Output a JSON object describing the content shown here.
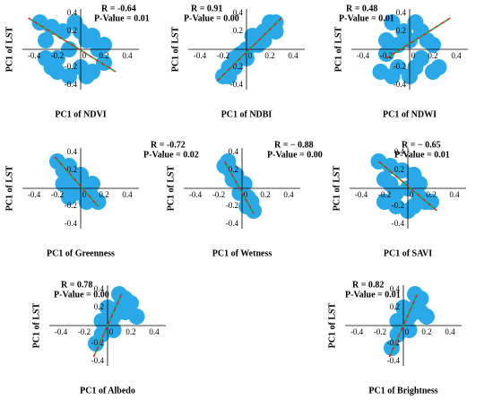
{
  "chart_data": [
    {
      "type": "scatter",
      "annotations": [
        "R = -0.64",
        "P-Value = 0.01"
      ],
      "xlabel": "PC1 of NDVI",
      "ylabel": "PC1 of LST",
      "color": "#29a9e8",
      "x": [
        -0.35,
        -0.3,
        -0.25,
        -0.2,
        -0.15,
        -0.1,
        -0.05,
        0,
        0.05,
        0.1,
        0.15,
        0.2,
        -0.3,
        -0.2,
        -0.1,
        0,
        0.1,
        0.2,
        -0.25,
        0.05
      ],
      "y": [
        0.3,
        0.1,
        0.25,
        -0.1,
        0.2,
        0,
        0.3,
        -0.2,
        0.1,
        -0.25,
        0,
        -0.15,
        -0.1,
        -0.25,
        -0.3,
        0.2,
        0.15,
        0.05,
        -0.2,
        -0.3
      ],
      "trend_line": {
        "x": [
          -0.45,
          0.3
        ],
        "y": [
          0.35,
          -0.25
        ],
        "colors": [
          "#d62728",
          "#2ca02c"
        ]
      },
      "xlim": [
        -0.5,
        0.5
      ],
      "ylim": [
        -0.45,
        0.45
      ],
      "xticks": [
        -0.4,
        -0.2,
        0,
        0.2,
        0.4
      ],
      "yticks": [
        -0.4,
        -0.2,
        0,
        0.2,
        0.4
      ]
    },
    {
      "type": "scatter",
      "annotations": [
        "R = 0.91",
        "P-Value = 0.00"
      ],
      "xlabel": "PC1 of NDBI",
      "ylabel": "PC1 of LST",
      "color": "#29a9e8",
      "x": [
        -0.2,
        -0.15,
        -0.1,
        -0.05,
        0,
        0.05,
        0.1,
        0.15,
        0.2,
        0.25,
        -0.1,
        0,
        0.1,
        0.2,
        -0.15,
        0.05,
        0.15,
        0.25
      ],
      "y": [
        -0.3,
        -0.2,
        -0.2,
        -0.05,
        0,
        0.05,
        0.15,
        0.2,
        0.25,
        0.3,
        -0.1,
        -0.1,
        0.05,
        0.3,
        -0.3,
        0.15,
        0.1,
        0.2
      ],
      "trend_line": {
        "x": [
          -0.25,
          0.3
        ],
        "y": [
          -0.35,
          0.35
        ],
        "colors": [
          "#d62728",
          "#2ca02c"
        ]
      },
      "xlim": [
        -0.5,
        0.5
      ],
      "ylim": [
        -0.45,
        0.45
      ],
      "xticks": [
        -0.4,
        -0.2,
        0,
        0.2,
        0.4
      ],
      "yticks": [
        -0.4,
        -0.2,
        0,
        0.2,
        0.4
      ]
    },
    {
      "type": "scatter",
      "annotations": [
        "R = 0.48",
        "P-Value = 0.01"
      ],
      "xlabel": "PC1 of NDWI",
      "ylabel": "PC1 of LST",
      "color": "#29a9e8",
      "x": [
        -0.25,
        -0.2,
        -0.15,
        -0.1,
        -0.05,
        0,
        0.05,
        0.1,
        0.15,
        0.2,
        -0.2,
        -0.1,
        0,
        0.1,
        0.2,
        0.25,
        -0.15,
        0.05
      ],
      "y": [
        -0.25,
        0.1,
        0.3,
        -0.2,
        0.2,
        -0.3,
        0.3,
        -0.1,
        0.1,
        -0.25,
        -0.05,
        0.05,
        0.1,
        0.2,
        0.05,
        -0.2,
        -0.3,
        -0.2
      ],
      "trend_line": {
        "x": [
          -0.2,
          0.35
        ],
        "y": [
          -0.1,
          0.35
        ],
        "colors": [
          "#d62728",
          "#2ca02c"
        ]
      },
      "xlim": [
        -0.5,
        0.5
      ],
      "ylim": [
        -0.45,
        0.45
      ],
      "xticks": [
        -0.4,
        -0.2,
        0,
        0.2,
        0.4
      ],
      "yticks": [
        -0.4,
        -0.2,
        0,
        0.2,
        0.4
      ]
    },
    {
      "type": "scatter",
      "annotations": [
        "R = -0.72",
        "P-Value = 0.02"
      ],
      "xlabel": "PC1 of Greenness",
      "ylabel": "PC1 of LST",
      "color": "#29a9e8",
      "x": [
        -0.2,
        -0.15,
        -0.1,
        -0.05,
        0,
        0.05,
        0.1,
        -0.15,
        -0.05,
        0.05,
        0.1,
        0,
        -0.1,
        0.15
      ],
      "y": [
        0.3,
        0.2,
        0.25,
        0.1,
        0.05,
        0,
        -0.1,
        0.05,
        -0.05,
        -0.15,
        0.05,
        0.15,
        -0.1,
        -0.15
      ],
      "trend_line": {
        "x": [
          -0.22,
          0.15
        ],
        "y": [
          0.35,
          -0.2
        ],
        "colors": [
          "#d62728",
          "#2ca02c"
        ]
      },
      "xlim": [
        -0.5,
        0.5
      ],
      "ylim": [
        -0.45,
        0.45
      ],
      "xticks": [
        -0.4,
        -0.2,
        0,
        0.2,
        0.4
      ],
      "yticks": [
        -0.4,
        -0.2,
        0,
        0.2,
        0.4
      ]
    },
    {
      "type": "scatter",
      "annotations": [
        "R = − 0.88",
        "P-Value = 0.00"
      ],
      "xlabel": "PC1 of Wetness",
      "ylabel": "PC1 of LST",
      "color": "#29a9e8",
      "x": [
        -0.15,
        -0.1,
        -0.08,
        -0.05,
        0,
        0.02,
        0.05,
        0.08,
        0.1,
        -0.12,
        -0.02,
        0.04
      ],
      "y": [
        0.25,
        0.2,
        0.1,
        0.15,
        0,
        0.05,
        -0.1,
        -0.15,
        -0.25,
        0.3,
        -0.05,
        -0.2
      ],
      "trend_line": {
        "x": [
          -0.15,
          0.1
        ],
        "y": [
          0.3,
          -0.28
        ],
        "colors": [
          "#d62728",
          "#2ca02c"
        ]
      },
      "xlim": [
        -0.5,
        0.5
      ],
      "ylim": [
        -0.45,
        0.45
      ],
      "xticks": [
        -0.4,
        -0.2,
        0,
        0.2,
        0.4
      ],
      "yticks": [
        -0.4,
        -0.2,
        0,
        0.2,
        0.4
      ]
    },
    {
      "type": "scatter",
      "annotations": [
        "R = − 0.65",
        "P-Value = 0.01"
      ],
      "xlabel": "PC1 of SAVI",
      "ylabel": "PC1 of LST",
      "color": "#29a9e8",
      "x": [
        -0.25,
        -0.2,
        -0.15,
        -0.1,
        -0.05,
        0,
        0.05,
        0.1,
        0.15,
        -0.2,
        -0.1,
        0,
        0.1,
        -0.15,
        0.05,
        0.2
      ],
      "y": [
        0.3,
        0.1,
        0.25,
        -0.05,
        0.2,
        0,
        0.15,
        -0.1,
        -0.15,
        -0.15,
        -0.2,
        -0.25,
        0.05,
        0.05,
        -0.2,
        -0.15
      ],
      "trend_line": {
        "x": [
          -0.25,
          0.25
        ],
        "y": [
          0.3,
          -0.25
        ],
        "colors": [
          "#d62728",
          "#2ca02c"
        ]
      },
      "xlim": [
        -0.5,
        0.5
      ],
      "ylim": [
        -0.45,
        0.45
      ],
      "xticks": [
        -0.4,
        -0.2,
        0,
        0.2,
        0.4
      ],
      "yticks": [
        -0.4,
        -0.2,
        0,
        0.2,
        0.4
      ]
    },
    {
      "type": "scatter",
      "annotations": [
        "R = 0.78",
        "P-Value = 0.00"
      ],
      "xlabel": "PC1 of Albedo",
      "ylabel": "PC1 of LST",
      "color": "#29a9e8",
      "x": [
        -0.1,
        -0.05,
        0,
        0.05,
        0.1,
        0.15,
        0.2,
        -0.05,
        0.05,
        0.1,
        0.15,
        0,
        0.25
      ],
      "y": [
        -0.2,
        -0.1,
        0,
        0.1,
        0.2,
        0.3,
        0.25,
        0.05,
        -0.05,
        0.35,
        0.15,
        0.2,
        0.1
      ],
      "trend_line": {
        "x": [
          -0.12,
          0.12
        ],
        "y": [
          -0.35,
          0.35
        ],
        "colors": [
          "#d62728",
          "#2ca02c"
        ]
      },
      "xlim": [
        -0.5,
        0.5
      ],
      "ylim": [
        -0.45,
        0.45
      ],
      "xticks": [
        -0.4,
        -0.2,
        0,
        0.2,
        0.4
      ],
      "yticks": [
        -0.4,
        -0.2,
        0,
        0.2,
        0.4
      ]
    },
    {
      "type": "scatter",
      "annotations": [
        "R = 0.82",
        "P-Value = 0.01"
      ],
      "xlabel": "PC1 of Brightness",
      "ylabel": "PC1 of LST",
      "color": "#29a9e8",
      "x": [
        -0.1,
        -0.05,
        0,
        0.05,
        0.1,
        0.15,
        -0.05,
        0.05,
        0.1,
        0,
        0.15,
        0.2
      ],
      "y": [
        -0.25,
        -0.1,
        0,
        0.1,
        0.2,
        0.3,
        0.05,
        -0.05,
        0.35,
        0.2,
        0.15,
        0.1
      ],
      "trend_line": {
        "x": [
          -0.12,
          0.12
        ],
        "y": [
          -0.35,
          0.35
        ],
        "colors": [
          "#d62728",
          "#2ca02c"
        ]
      },
      "xlim": [
        -0.5,
        0.5
      ],
      "ylim": [
        -0.45,
        0.45
      ],
      "xticks": [
        -0.4,
        -0.2,
        0,
        0.2,
        0.4
      ],
      "yticks": [
        -0.4,
        -0.2,
        0,
        0.2,
        0.4
      ]
    }
  ]
}
